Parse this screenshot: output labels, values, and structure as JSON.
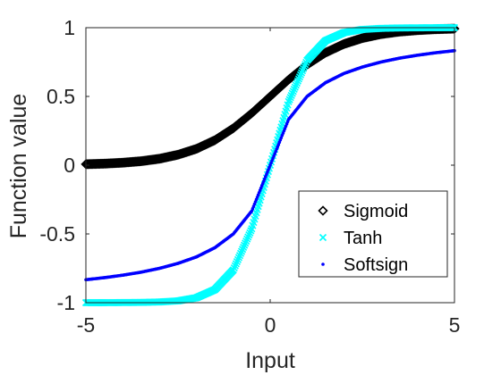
{
  "chart_data": {
    "type": "scatter",
    "title": "",
    "xlabel": "Input",
    "ylabel": "Function value",
    "xlim": [
      -5,
      5
    ],
    "ylim": [
      -1,
      1
    ],
    "x_ticks": [
      -5,
      0,
      5
    ],
    "x_tick_labels": [
      "-5",
      "0",
      "5"
    ],
    "y_ticks": [
      -1,
      -0.5,
      0,
      0.5,
      1
    ],
    "y_tick_labels": [
      "-1",
      "-0.5",
      "0",
      "0.5",
      "1"
    ],
    "grid": false,
    "legend_position": "bottom-right",
    "x": [
      -5,
      -4.5,
      -4,
      -3.5,
      -3,
      -2.5,
      -2,
      -1.5,
      -1,
      -0.5,
      0,
      0.5,
      1,
      1.5,
      2,
      2.5,
      3,
      3.5,
      4,
      4.5,
      5
    ],
    "series": [
      {
        "name": "Sigmoid",
        "marker": "diamond",
        "color": "#000000",
        "values": [
          0.007,
          0.011,
          0.018,
          0.029,
          0.047,
          0.076,
          0.119,
          0.182,
          0.269,
          0.378,
          0.5,
          0.622,
          0.731,
          0.818,
          0.881,
          0.924,
          0.953,
          0.971,
          0.982,
          0.989,
          0.993
        ]
      },
      {
        "name": "Tanh",
        "marker": "x",
        "color": "#00FFFF",
        "values": [
          -1.0,
          -1.0,
          -0.999,
          -0.998,
          -0.995,
          -0.987,
          -0.964,
          -0.905,
          -0.762,
          -0.462,
          0,
          0.462,
          0.762,
          0.905,
          0.964,
          0.987,
          0.995,
          0.998,
          0.999,
          1.0,
          1.0
        ]
      },
      {
        "name": "Softsign",
        "marker": "point",
        "color": "#0000FF",
        "values": [
          -0.833,
          -0.818,
          -0.8,
          -0.778,
          -0.75,
          -0.714,
          -0.667,
          -0.6,
          -0.5,
          -0.333,
          0,
          0.333,
          0.5,
          0.6,
          0.667,
          0.714,
          0.75,
          0.778,
          0.8,
          0.818,
          0.833
        ]
      }
    ]
  }
}
